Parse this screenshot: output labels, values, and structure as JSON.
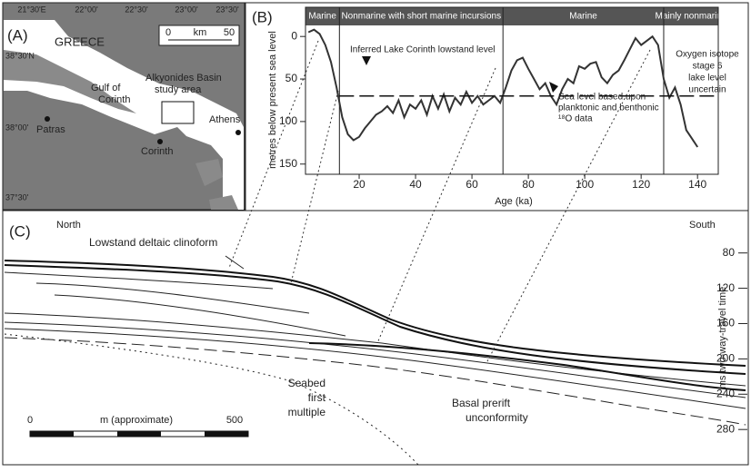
{
  "panel_a": {
    "label": "(A)",
    "country": "GREECE",
    "scale": {
      "start": "0",
      "unit": "km",
      "end": "50"
    },
    "lon_labels": [
      "21°30'E",
      "22°00'",
      "22°30'",
      "23°00'",
      "23°30'"
    ],
    "lat_labels": [
      "38°30'N",
      "38°00'",
      "37°30'"
    ],
    "study_area": [
      "Alkyonides Basin",
      "study area"
    ],
    "gulf": [
      "Gulf of",
      "Corinth"
    ],
    "towns": [
      "Patras",
      "Corinth",
      "Athens"
    ]
  },
  "chart_data": {
    "type": "line",
    "panel_label": "(B)",
    "zones": [
      "Marine",
      "Nonmarine with short marine incursions",
      "Marine",
      "Mainly nonmarine"
    ],
    "zone_bounds": [
      13,
      71,
      128
    ],
    "x_label": "Age (ka)",
    "y_label": "metres below present sea level",
    "xlim": [
      0,
      148
    ],
    "xticks": [
      20,
      40,
      60,
      80,
      100,
      120,
      140
    ],
    "ylim": [
      -13,
      162
    ],
    "yticks": [
      0,
      50,
      100,
      150
    ],
    "y_inverted": true,
    "color": "#333333",
    "x": [
      2,
      4,
      6,
      8,
      10,
      12,
      14,
      16,
      18,
      20,
      22,
      24,
      26,
      28,
      30,
      32,
      34,
      36,
      38,
      40,
      42,
      44,
      46,
      48,
      50,
      52,
      54,
      56,
      58,
      60,
      62,
      64,
      66,
      68,
      70,
      72,
      74,
      76,
      78,
      80,
      82,
      84,
      86,
      88,
      90,
      92,
      94,
      96,
      98,
      100,
      102,
      104,
      106,
      108,
      110,
      112,
      114,
      116,
      118,
      120,
      122,
      124,
      126,
      128,
      130,
      132,
      134,
      136,
      138,
      140
    ],
    "values": [
      -5,
      -8,
      -3,
      10,
      30,
      60,
      95,
      115,
      122,
      118,
      108,
      100,
      92,
      88,
      82,
      90,
      75,
      95,
      80,
      85,
      75,
      92,
      70,
      85,
      68,
      88,
      72,
      80,
      65,
      78,
      70,
      80,
      75,
      70,
      78,
      60,
      40,
      28,
      25,
      38,
      50,
      62,
      55,
      70,
      80,
      62,
      50,
      55,
      35,
      38,
      32,
      30,
      48,
      55,
      45,
      40,
      28,
      15,
      2,
      10,
      5,
      0,
      10,
      50,
      72,
      60,
      80,
      110,
      120,
      130
    ],
    "reference_line": {
      "value": 70,
      "label": "Inferred Lake Corinth lowstand level"
    },
    "annotations": [
      [
        "Sea level based upon",
        "planktonic and benthonic",
        "¹⁸O data"
      ],
      [
        "Oxygen isotope",
        "stage 6",
        "lake level",
        "uncertain"
      ]
    ]
  },
  "panel_c": {
    "label": "(C)",
    "north": "North",
    "south": "South",
    "axis_label": "ms two-way-travel time",
    "ylim": [
      32,
      323
    ],
    "yticks": [
      80,
      120,
      160,
      200,
      240,
      280
    ],
    "clinoform": "Lowstand deltaic clinoform",
    "multiple": [
      "Seabed",
      "first",
      "multiple"
    ],
    "unconformity": [
      "Basal prerift",
      "unconformity"
    ],
    "scale": {
      "start": "0",
      "unit": "m (approximate)",
      "end": "500"
    }
  }
}
